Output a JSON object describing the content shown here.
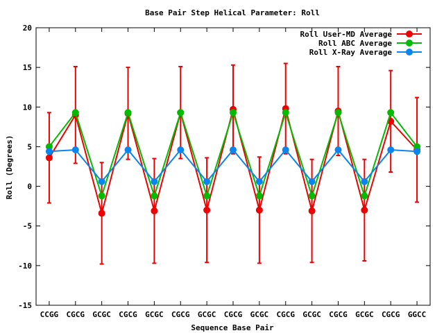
{
  "chart_data": {
    "type": "line",
    "title": "Base Pair Step Helical Parameter: Roll",
    "xlabel": "Sequence Base Pair",
    "ylabel": "Roll (Degrees)",
    "ylim": [
      -15,
      20
    ],
    "yticks": [
      -15,
      -10,
      -5,
      0,
      5,
      10,
      15,
      20
    ],
    "grid": false,
    "legend_position": "top-right",
    "categories": [
      "CCGG",
      "CGCG",
      "GCGC",
      "CGCG",
      "GCGC",
      "CGCG",
      "GCGC",
      "CGCG",
      "GCGC",
      "CGCG",
      "GCGC",
      "CGCG",
      "GCGC",
      "CGCG",
      "GGCC"
    ],
    "series": [
      {
        "name": "Roll User-MD Average",
        "color": "#ee0000",
        "values": [
          3.6,
          9.0,
          -3.4,
          9.2,
          -3.1,
          9.3,
          -3.0,
          9.7,
          -3.0,
          9.8,
          -3.1,
          9.5,
          -3.0,
          8.2,
          4.6
        ],
        "error": [
          5.7,
          6.1,
          6.4,
          5.8,
          6.6,
          5.8,
          6.6,
          5.6,
          6.7,
          5.7,
          6.5,
          5.6,
          6.4,
          6.4,
          6.6
        ]
      },
      {
        "name": "Roll ABC Average",
        "color": "#00bb00",
        "values": [
          5.0,
          9.3,
          -1.2,
          9.3,
          -1.2,
          9.3,
          -1.2,
          9.3,
          -1.2,
          9.3,
          -1.2,
          9.3,
          -1.2,
          9.3,
          5.0
        ]
      },
      {
        "name": "Roll X-Ray Average",
        "color": "#0a84ee",
        "values": [
          4.4,
          4.6,
          0.6,
          4.6,
          0.6,
          4.6,
          0.6,
          4.6,
          0.6,
          4.6,
          0.6,
          4.6,
          0.6,
          4.6,
          4.4
        ]
      }
    ]
  }
}
